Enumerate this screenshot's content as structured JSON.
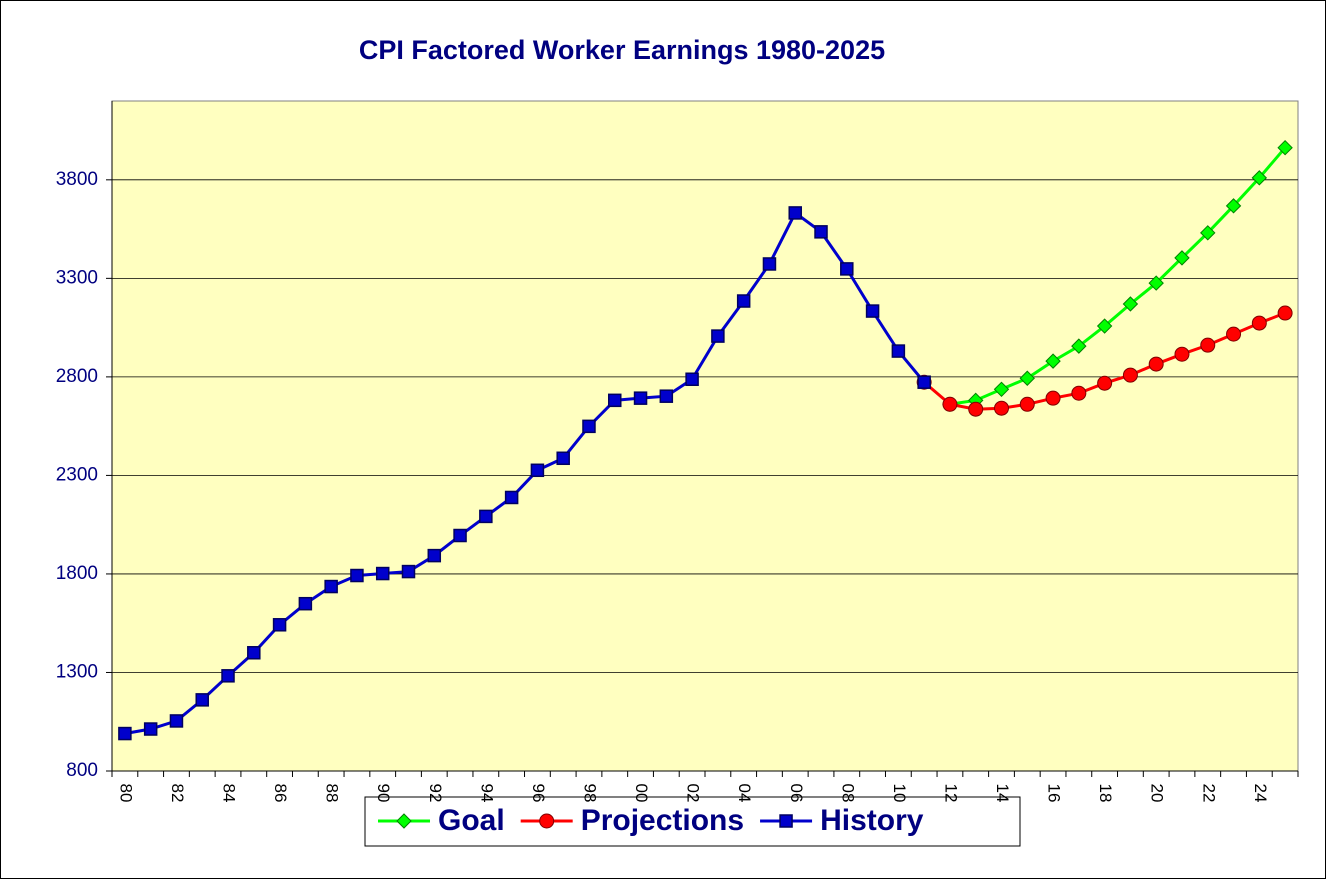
{
  "chart_data": {
    "type": "line",
    "title": "CPI Factored Worker Earnings 1980-2025",
    "categories": [
      "80",
      null,
      "82",
      null,
      "84",
      null,
      "86",
      null,
      "88",
      null,
      "90",
      null,
      "92",
      null,
      "94",
      null,
      "96",
      null,
      "98",
      null,
      "00",
      null,
      "02",
      null,
      "04",
      null,
      "06",
      null,
      "08",
      null,
      "10",
      null,
      "12",
      null,
      "14",
      null,
      "16",
      null,
      "18",
      null,
      "20",
      null,
      "22",
      null,
      "24",
      null
    ],
    "series": [
      {
        "name": "Goal",
        "color": "#00ff00",
        "marker": "diamond",
        "values": [
          null,
          null,
          null,
          null,
          null,
          null,
          null,
          null,
          null,
          null,
          null,
          null,
          null,
          null,
          null,
          null,
          null,
          null,
          null,
          null,
          null,
          null,
          null,
          null,
          null,
          null,
          null,
          null,
          null,
          null,
          null,
          null,
          2661,
          2681,
          2737,
          2793,
          2880,
          2956,
          3058,
          3170,
          3276,
          3404,
          3531,
          3668,
          3810,
          3963
        ]
      },
      {
        "name": "Projections",
        "color": "#ff0000",
        "marker": "circle",
        "values": [
          null,
          null,
          null,
          null,
          null,
          null,
          null,
          null,
          null,
          null,
          null,
          null,
          null,
          null,
          null,
          null,
          null,
          null,
          null,
          null,
          null,
          null,
          null,
          null,
          null,
          null,
          null,
          null,
          null,
          null,
          null,
          2773,
          2661,
          2636,
          2641,
          2661,
          2692,
          2717,
          2768,
          2809,
          2865,
          2915,
          2961,
          3017,
          3073,
          3124
        ]
      },
      {
        "name": "History",
        "color": "#0000cc",
        "marker": "square",
        "values": [
          990,
          1013,
          1054,
          1161,
          1283,
          1400,
          1542,
          1649,
          1736,
          1792,
          1802,
          1812,
          1893,
          1995,
          2092,
          2188,
          2326,
          2387,
          2549,
          2681,
          2692,
          2702,
          2788,
          3007,
          3185,
          3373,
          3632,
          3536,
          3348,
          3134,
          2931,
          2773,
          null,
          null,
          null,
          null,
          null,
          null,
          null,
          null,
          null,
          null,
          null,
          null,
          null,
          null
        ]
      }
    ],
    "ylim": [
      800,
      4200
    ],
    "yticks": [
      800,
      1300,
      1800,
      2300,
      2800,
      3300,
      3800
    ],
    "grid": true,
    "legend": "bottom"
  }
}
